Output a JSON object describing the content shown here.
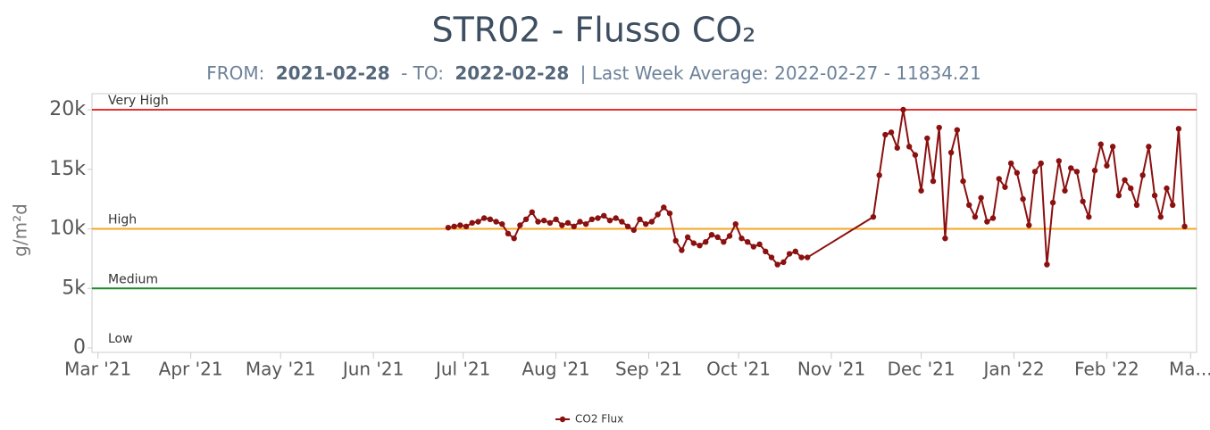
{
  "chart_data": {
    "type": "line",
    "title": "STR02 - Flusso CO₂",
    "subtitle": {
      "from_label": "FROM:",
      "from": "2021-02-28",
      "to_label": "- TO:",
      "to": "2022-02-28",
      "average": "| Last Week Average: 2022-02-27 - 11834.21"
    },
    "y_label": "g/m²d",
    "xlim": [
      -2,
      367
    ],
    "xticks": [
      {
        "value": 0,
        "label": "Mar '21"
      },
      {
        "value": 31,
        "label": "Apr '21"
      },
      {
        "value": 61,
        "label": "May '21"
      },
      {
        "value": 92,
        "label": "Jun '21"
      },
      {
        "value": 122,
        "label": "Jul '21"
      },
      {
        "value": 153,
        "label": "Aug '21"
      },
      {
        "value": 184,
        "label": "Sep '21"
      },
      {
        "value": 214,
        "label": "Oct '21"
      },
      {
        "value": 245,
        "label": "Nov '21"
      },
      {
        "value": 275,
        "label": "Dec '21"
      },
      {
        "value": 306,
        "label": "Jan '22"
      },
      {
        "value": 337,
        "label": "Feb '22"
      },
      {
        "value": 365,
        "label": "Ma..."
      }
    ],
    "ylim": [
      0,
      20000
    ],
    "yticks": [
      0,
      {
        "value": 5000,
        "label": "5k"
      },
      {
        "value": 10000,
        "label": "10k"
      },
      {
        "value": 15000,
        "label": "15k"
      },
      {
        "value": 20000,
        "label": "20k"
      }
    ],
    "plot_lines": [
      {
        "value": 20000,
        "label": "Very High",
        "color": "#e8312f"
      },
      {
        "value": 10000,
        "label": "High",
        "color": "#f5a623"
      },
      {
        "value": 5000,
        "label": "Medium",
        "color": "#1f8a2a"
      },
      {
        "value": 0,
        "label": "Low"
      }
    ],
    "x": [
      117,
      119,
      121,
      123,
      125,
      127,
      129,
      131,
      133,
      135,
      137,
      139,
      141,
      143,
      145,
      147,
      149,
      151,
      153,
      155,
      157,
      159,
      161,
      163,
      165,
      167,
      169,
      171,
      173,
      175,
      177,
      179,
      181,
      183,
      185,
      187,
      189,
      191,
      193,
      195,
      197,
      199,
      201,
      203,
      205,
      207,
      209,
      211,
      213,
      215,
      217,
      219,
      221,
      223,
      225,
      227,
      229,
      231,
      233,
      235,
      237,
      259,
      261,
      263,
      265,
      267,
      269,
      271,
      273,
      275,
      277,
      279,
      281,
      283,
      285,
      287,
      289,
      291,
      293,
      295,
      297,
      299,
      301,
      303,
      305,
      307,
      309,
      311,
      313,
      315,
      317,
      319,
      321,
      323,
      325,
      327,
      329,
      331,
      333,
      335,
      337,
      339,
      341,
      343,
      345,
      347,
      349,
      351,
      353,
      355,
      357,
      359,
      361,
      363
    ],
    "series": [
      {
        "name": "CO2 Flux",
        "color": "#8b1010",
        "values": [
          10100,
          10200,
          10300,
          10200,
          10500,
          10600,
          10900,
          10800,
          10600,
          10400,
          9600,
          9200,
          10300,
          10800,
          11400,
          10600,
          10700,
          10500,
          10800,
          10300,
          10500,
          10200,
          10600,
          10400,
          10800,
          10900,
          11100,
          10700,
          10900,
          10600,
          10200,
          9900,
          10800,
          10400,
          10600,
          11200,
          11800,
          11300,
          9000,
          8200,
          9300,
          8800,
          8600,
          8900,
          9500,
          9300,
          8900,
          9400,
          10400,
          9200,
          8900,
          8500,
          8700,
          8100,
          7600,
          7000,
          7200,
          7900,
          8100,
          7600,
          7600,
          11000,
          14500,
          17900,
          18100,
          16800,
          20000,
          16900,
          16200,
          13200,
          17600,
          14000,
          18500,
          9200,
          16400,
          18300,
          14000,
          12000,
          11000,
          12600,
          10600,
          10900,
          14200,
          13500,
          15500,
          14700,
          12500,
          10300,
          14800,
          15500,
          7000,
          12200,
          15700,
          13200,
          15100,
          14800,
          12300,
          11000,
          14900,
          17100,
          15300,
          16900,
          12800,
          14100,
          13400,
          12000,
          14500,
          16900,
          12800,
          11000,
          13400,
          12000,
          18400,
          10200
        ]
      }
    ]
  }
}
